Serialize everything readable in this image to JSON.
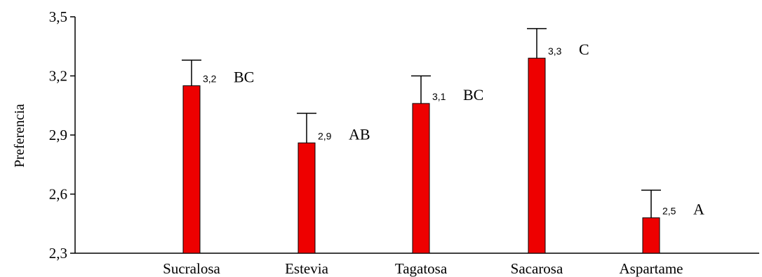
{
  "chart_data": {
    "type": "bar",
    "ylabel": "Preferencia",
    "xlabel": "",
    "title": "",
    "ylim": [
      2.3,
      3.5
    ],
    "yticks": [
      2.3,
      2.6,
      2.9,
      3.2,
      3.5
    ],
    "ytick_labels": [
      "2,3",
      "2,6",
      "2,9",
      "3,2",
      "3,5"
    ],
    "categories": [
      "Sucralosa",
      "Estevia",
      "Tagatosa",
      "Sacarosa",
      "Aspartame"
    ],
    "values": [
      3.15,
      2.86,
      3.06,
      3.29,
      2.48
    ],
    "error_upper": [
      3.28,
      3.01,
      3.2,
      3.44,
      2.62
    ],
    "value_labels": [
      "3,2",
      "2,9",
      "3,1",
      "3,3",
      "2,5"
    ],
    "group_labels": [
      "BC",
      "AB",
      "BC",
      "C",
      "A"
    ],
    "bar_color": "#ee0000",
    "grid": false
  }
}
